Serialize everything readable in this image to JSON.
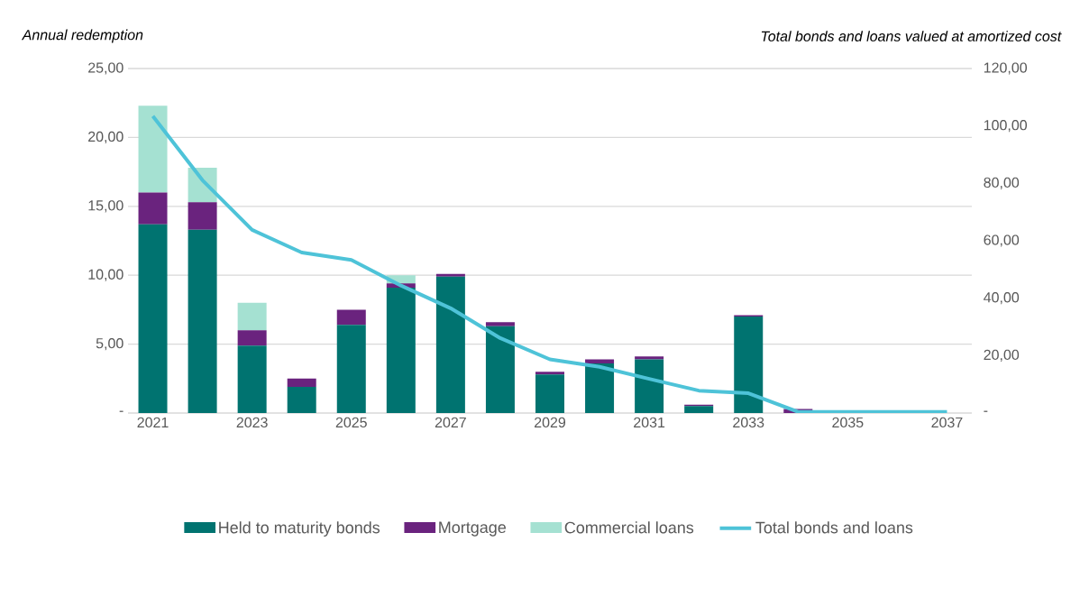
{
  "chart_data": {
    "type": "bar",
    "stacked": true,
    "ylabel": "Annual redemption",
    "y2label": "Total bonds and loans valued at amortized cost",
    "categories": [
      "2021",
      null,
      "2023",
      null,
      "2025",
      null,
      "2027",
      null,
      "2029",
      null,
      "2031",
      null,
      "2033",
      null,
      "2035",
      null,
      "2037"
    ],
    "series": [
      {
        "name": "Held to maturity bonds",
        "color": "#007370",
        "values": [
          13.7,
          13.3,
          4.9,
          1.9,
          6.4,
          9.1,
          9.9,
          6.3,
          2.8,
          3.6,
          3.9,
          0.5,
          7.0,
          null,
          0,
          0,
          0
        ]
      },
      {
        "name": "Mortgage",
        "color": "#6a237e",
        "values": [
          2.3,
          2.0,
          1.1,
          0.6,
          1.1,
          0.3,
          0.2,
          0.3,
          0.2,
          0.3,
          0.2,
          0.1,
          0.1,
          0.3,
          0,
          0,
          0
        ]
      },
      {
        "name": "Commercial loans",
        "color": "#a5e1d2",
        "values": [
          6.3,
          2.5,
          2.0,
          0,
          0,
          0.6,
          0,
          0,
          0,
          0,
          0,
          0,
          0,
          0,
          0,
          0,
          0
        ]
      },
      {
        "name": "Total bonds and loans",
        "type": "line",
        "axis": "y2",
        "color": "#4ec3d8",
        "values": [
          103.4,
          81.1,
          63.8,
          55.9,
          53.3,
          44.4,
          36.5,
          26.1,
          18.7,
          16.1,
          11.9,
          7.8,
          6.9,
          0.4,
          0.4,
          0.4,
          0.4
        ]
      }
    ],
    "ylim": [
      0,
      25
    ],
    "yticks": [
      {
        "value": 0,
        "label": "-"
      },
      {
        "value": 5,
        "label": "5,00"
      },
      {
        "value": 10,
        "label": "10,00"
      },
      {
        "value": 15,
        "label": "15,00"
      },
      {
        "value": 20,
        "label": "20,00"
      },
      {
        "value": 25,
        "label": "25,00"
      }
    ],
    "y2lim": [
      0,
      120
    ],
    "y2ticks": [
      {
        "value": 0,
        "label": "-"
      },
      {
        "value": 20,
        "label": "20,00"
      },
      {
        "value": 40,
        "label": "40,00"
      },
      {
        "value": 60,
        "label": "60,00"
      },
      {
        "value": 80,
        "label": "80,00"
      },
      {
        "value": 100,
        "label": "100,00"
      },
      {
        "value": 120,
        "label": "120,00"
      }
    ],
    "grid": "y",
    "legend": "bottom",
    "marker": "none",
    "line_style": "solid"
  }
}
